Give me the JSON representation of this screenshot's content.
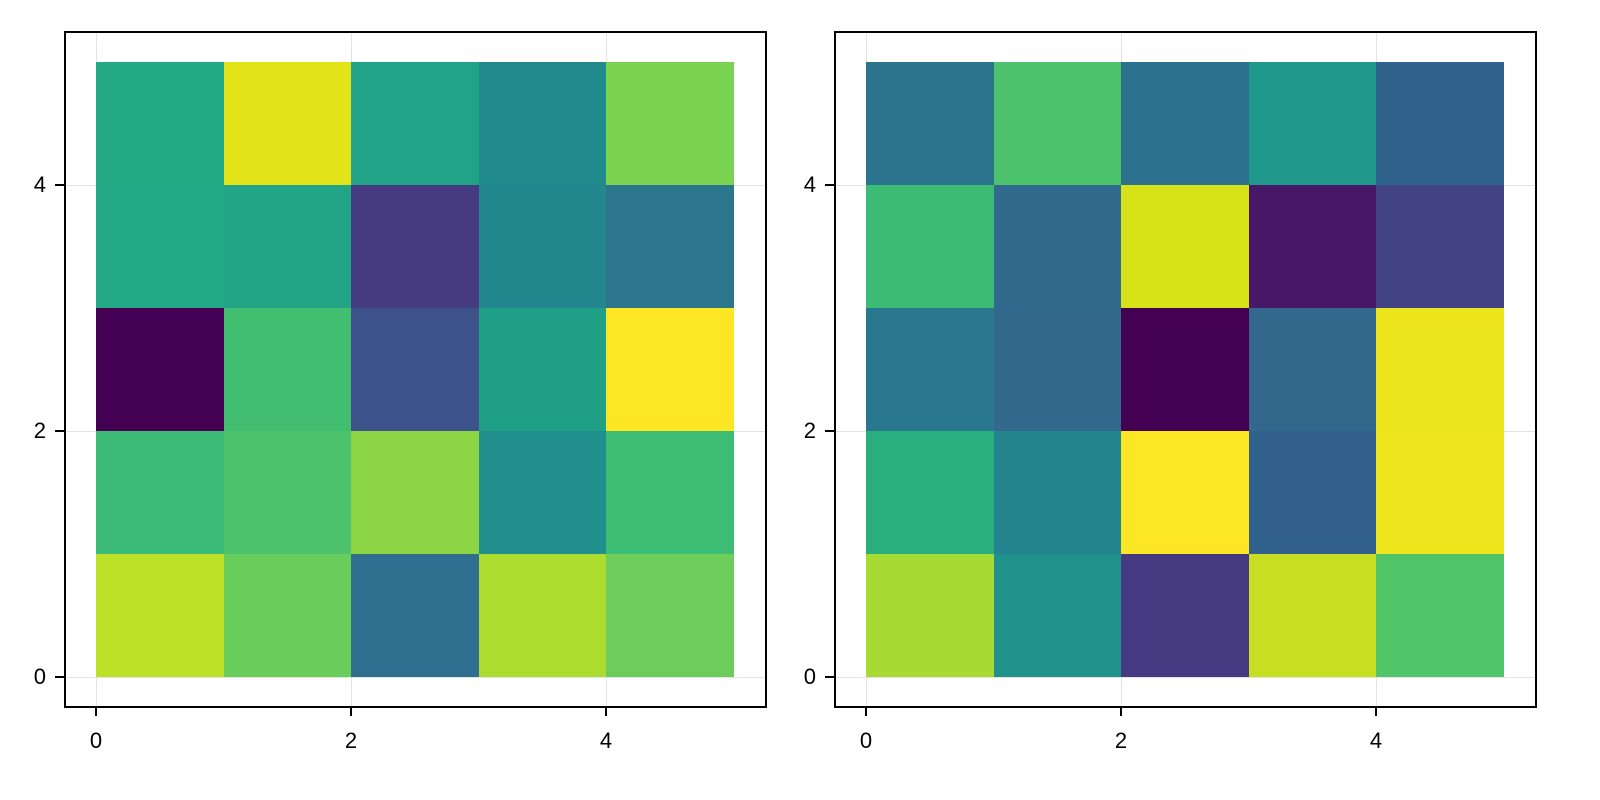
{
  "chart_data": [
    {
      "type": "heatmap",
      "title": "",
      "xlabel": "",
      "ylabel": "",
      "colormap": "viridis",
      "xlim": [
        -0.25,
        5.25
      ],
      "ylim": [
        -0.25,
        5.25
      ],
      "x_ticks": [
        0,
        2,
        4
      ],
      "y_ticks": [
        0,
        2,
        4
      ],
      "x_tick_labels": [
        "0",
        "2",
        "4"
      ],
      "y_tick_labels": [
        "0",
        "2",
        "4"
      ],
      "grid": true,
      "rows_bottom_to_top": [
        {
          "y": 0,
          "values": [
            0.88,
            0.72,
            0.36,
            0.86,
            0.74
          ],
          "colors": [
            "#bde127",
            "#69cd5b",
            "#2e6e8e",
            "#addc30",
            "#6ccd5a"
          ]
        },
        {
          "y": 1,
          "values": [
            0.65,
            0.68,
            0.8,
            0.5,
            0.65
          ],
          "colors": [
            "#3bbb75",
            "#4cc26c",
            "#8cd646",
            "#21908d",
            "#3dbc74"
          ]
        },
        {
          "y": 2,
          "values": [
            0.0,
            0.66,
            0.26,
            0.56,
            1.0
          ],
          "colors": [
            "#440154",
            "#42be71",
            "#3d528a",
            "#20a187",
            "#fde725"
          ]
        },
        {
          "y": 3,
          "values": [
            0.58,
            0.57,
            0.18,
            0.52,
            0.4
          ],
          "colors": [
            "#23a985",
            "#21a586",
            "#463b80",
            "#23888e",
            "#2c768d"
          ]
        },
        {
          "y": 4,
          "values": [
            0.59,
            0.96,
            0.57,
            0.5,
            0.78
          ],
          "colors": [
            "#23a984",
            "#e3e418",
            "#20a386",
            "#218a8d",
            "#7ad251"
          ]
        }
      ]
    },
    {
      "type": "heatmap",
      "title": "",
      "xlabel": "",
      "ylabel": "",
      "colormap": "viridis",
      "xlim": [
        -0.25,
        5.25
      ],
      "ylim": [
        -0.25,
        5.25
      ],
      "x_ticks": [
        0,
        2,
        4
      ],
      "y_ticks": [
        0,
        2,
        4
      ],
      "x_tick_labels": [
        "0",
        "2",
        "4"
      ],
      "y_tick_labels": [
        "0",
        "2",
        "4"
      ],
      "grid": true,
      "rows_bottom_to_top": [
        {
          "y": 0,
          "values": [
            0.86,
            0.52,
            0.2,
            0.92,
            0.7
          ],
          "colors": [
            "#a7db34",
            "#21918c",
            "#453a81",
            "#c6e021",
            "#52c569"
          ]
        },
        {
          "y": 1,
          "values": [
            0.62,
            0.5,
            1.0,
            0.34,
            0.99
          ],
          "colors": [
            "#29af7f",
            "#23848e",
            "#fde725",
            "#32628c",
            "#f0e61d"
          ]
        },
        {
          "y": 2,
          "values": [
            0.42,
            0.36,
            0.0,
            0.38,
            0.98
          ],
          "colors": [
            "#29788d",
            "#33698c",
            "#440154",
            "#33678c",
            "#ece51b"
          ]
        },
        {
          "y": 3,
          "values": [
            0.66,
            0.36,
            0.95,
            0.07,
            0.22
          ],
          "colors": [
            "#3cbb75",
            "#306a8c",
            "#d8e219",
            "#481767",
            "#424385"
          ]
        },
        {
          "y": 4,
          "values": [
            0.4,
            0.68,
            0.38,
            0.55,
            0.34
          ],
          "colors": [
            "#2c738d",
            "#4cc26c",
            "#2c718d",
            "#20988b",
            "#31628b"
          ]
        }
      ]
    }
  ],
  "panels": [
    {
      "x_tick_labels": [
        "0",
        "2",
        "4"
      ],
      "y_tick_labels": [
        "0",
        "2",
        "4"
      ]
    },
    {
      "x_tick_labels": [
        "0",
        "2",
        "4"
      ],
      "y_tick_labels": [
        "0",
        "2",
        "4"
      ]
    }
  ]
}
